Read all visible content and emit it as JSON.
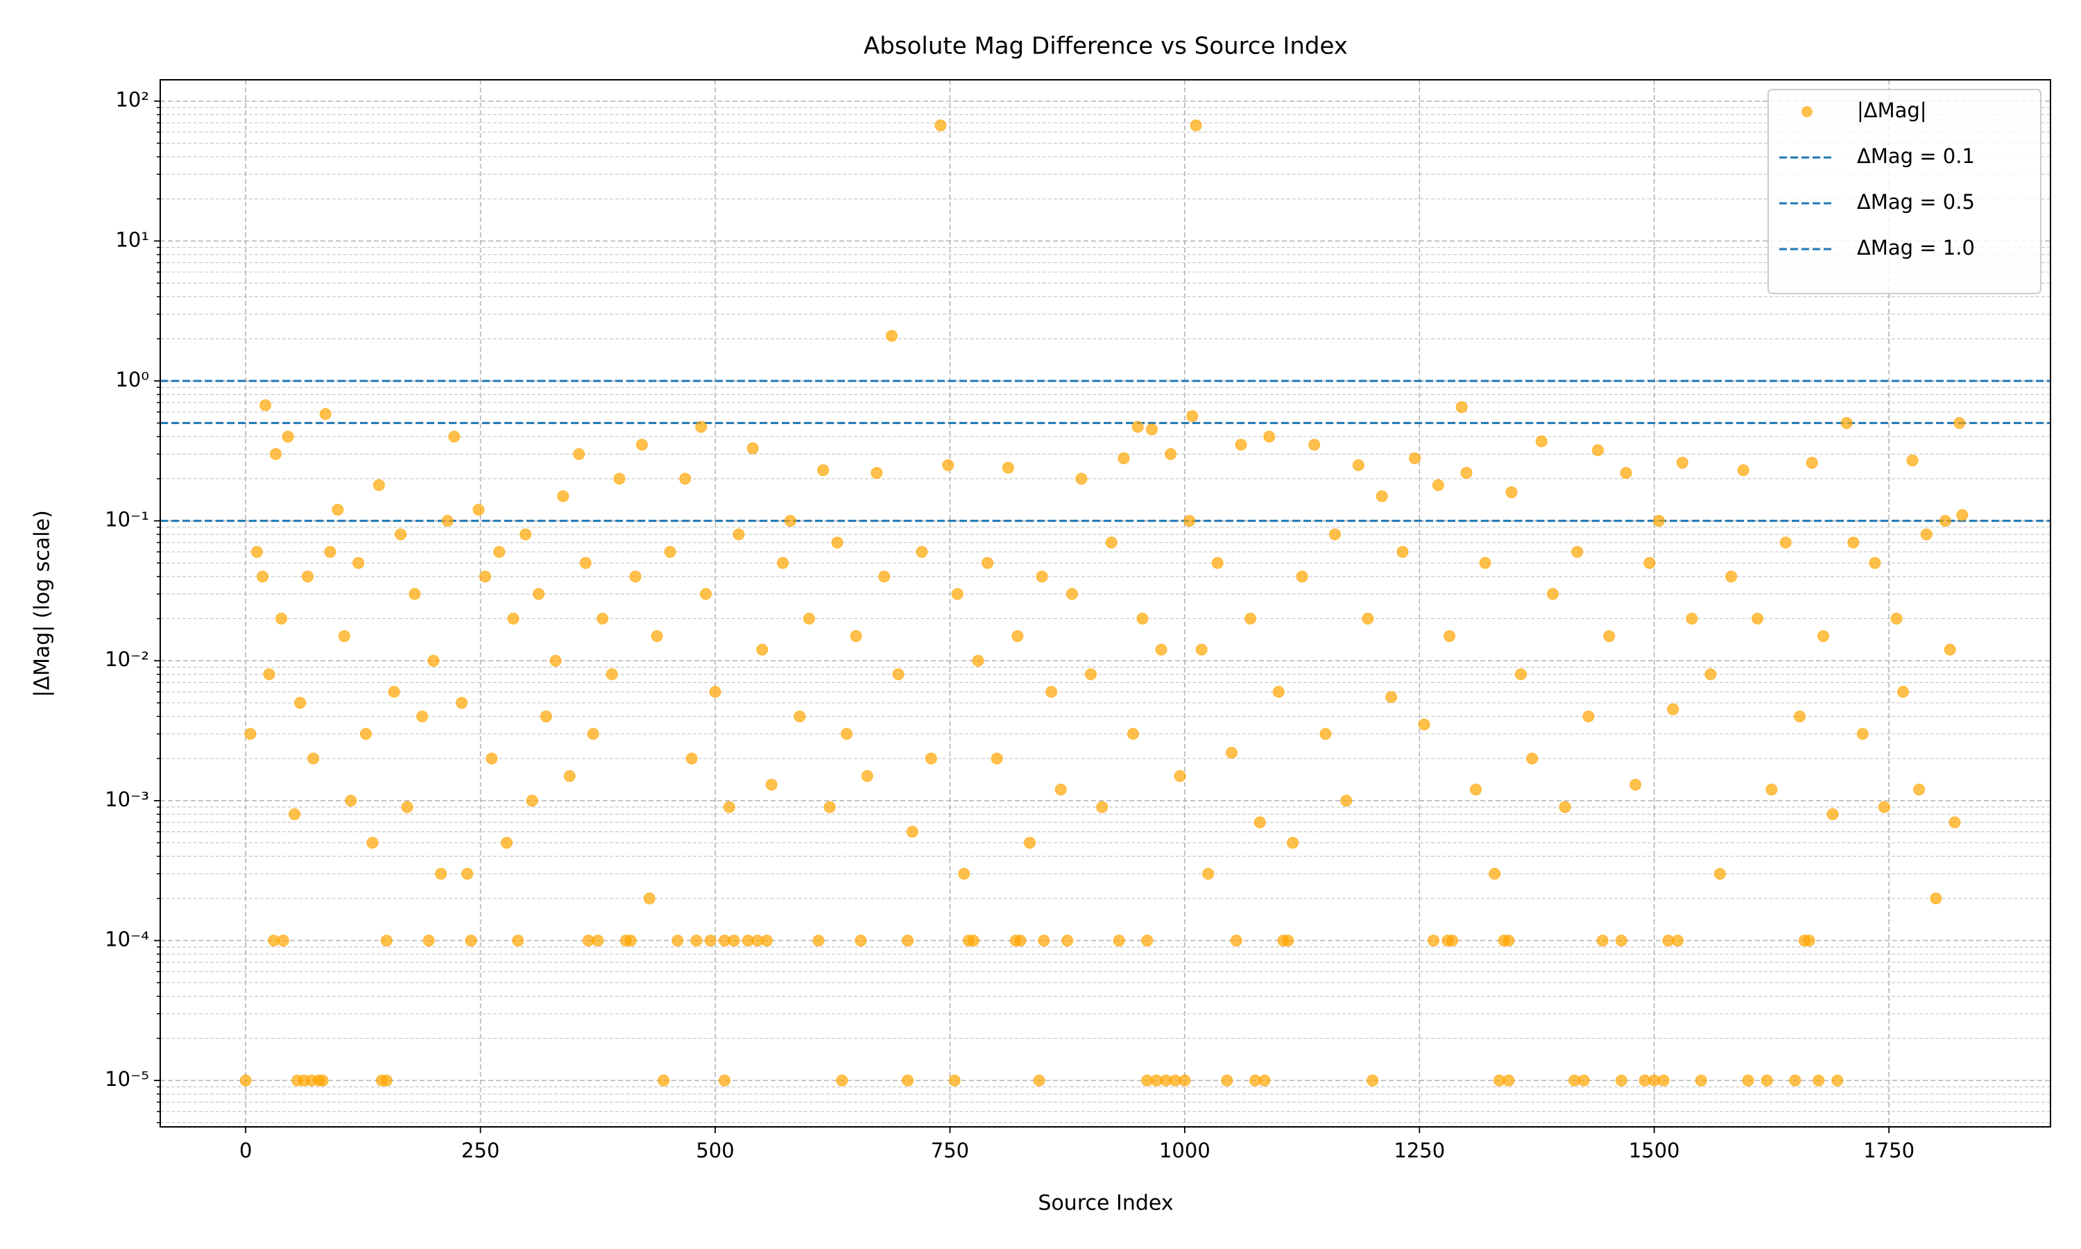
{
  "chart_data": {
    "type": "scatter",
    "title": "Absolute Mag Difference vs Source Index",
    "xlabel": "Source Index",
    "ylabel": "|ΔMag| (log scale)",
    "x": [
      740,
      1012,
      688,
      21,
      85,
      1295,
      1008,
      1825,
      1705,
      950,
      485,
      0,
      55,
      62,
      70,
      78,
      82,
      145,
      150,
      445,
      510,
      635,
      705,
      755,
      845,
      960,
      970,
      980,
      990,
      1000,
      1045,
      1075,
      1085,
      1200,
      1335,
      1345,
      1415,
      1425,
      1465,
      1490,
      1500,
      1510,
      1550,
      1600,
      1620,
      1650,
      1675,
      1695,
      30,
      40,
      150,
      195,
      240,
      290,
      365,
      375,
      405,
      410,
      460,
      480,
      495,
      510,
      520,
      535,
      545,
      555,
      610,
      655,
      705,
      770,
      775,
      820,
      825,
      850,
      875,
      930,
      960,
      1055,
      1105,
      1110,
      1265,
      1280,
      1285,
      1340,
      1345,
      1445,
      1465,
      1515,
      1525,
      1660,
      1665,
      5,
      12,
      18,
      25,
      32,
      38,
      45,
      52,
      58,
      66,
      72,
      90,
      98,
      105,
      112,
      120,
      128,
      135,
      142,
      158,
      165,
      172,
      180,
      188,
      200,
      208,
      215,
      222,
      230,
      236,
      248,
      255,
      262,
      270,
      278,
      285,
      298,
      305,
      312,
      320,
      330,
      338,
      345,
      355,
      362,
      370,
      380,
      390,
      398,
      415,
      422,
      430,
      438,
      452,
      468,
      475,
      490,
      500,
      515,
      525,
      540,
      550,
      560,
      572,
      580,
      590,
      600,
      615,
      622,
      630,
      640,
      650,
      662,
      672,
      680,
      695,
      710,
      720,
      730,
      748,
      758,
      765,
      780,
      790,
      800,
      812,
      822,
      835,
      848,
      858,
      868,
      880,
      890,
      900,
      912,
      922,
      935,
      945,
      955,
      965,
      975,
      985,
      995,
      1005,
      1018,
      1025,
      1035,
      1050,
      1060,
      1070,
      1080,
      1090,
      1100,
      1115,
      1125,
      1138,
      1150,
      1160,
      1172,
      1185,
      1195,
      1210,
      1220,
      1232,
      1245,
      1255,
      1270,
      1282,
      1300,
      1310,
      1320,
      1330,
      1348,
      1358,
      1370,
      1380,
      1392,
      1405,
      1418,
      1430,
      1440,
      1452,
      1470,
      1480,
      1495,
      1505,
      1520,
      1530,
      1540,
      1560,
      1570,
      1582,
      1595,
      1610,
      1625,
      1640,
      1655,
      1668,
      1680,
      1690,
      1712,
      1722,
      1735,
      1745,
      1758,
      1765,
      1775,
      1782,
      1790,
      1800,
      1810,
      1815,
      1820,
      1828
    ],
    "series": [
      {
        "name": "|ΔMag|",
        "color": "#ffa500",
        "values": [
          67,
          67,
          2.1,
          0.67,
          0.58,
          0.65,
          0.56,
          0.5,
          0.5,
          0.47,
          0.47,
          1e-05,
          1e-05,
          1e-05,
          1e-05,
          1e-05,
          1e-05,
          1e-05,
          1e-05,
          1e-05,
          1e-05,
          1e-05,
          1e-05,
          1e-05,
          1e-05,
          1e-05,
          1e-05,
          1e-05,
          1e-05,
          1e-05,
          1e-05,
          1e-05,
          1e-05,
          1e-05,
          1e-05,
          1e-05,
          1e-05,
          1e-05,
          1e-05,
          1e-05,
          1e-05,
          1e-05,
          1e-05,
          1e-05,
          1e-05,
          1e-05,
          1e-05,
          1e-05,
          0.0001,
          0.0001,
          0.0001,
          0.0001,
          0.0001,
          0.0001,
          0.0001,
          0.0001,
          0.0001,
          0.0001,
          0.0001,
          0.0001,
          0.0001,
          0.0001,
          0.0001,
          0.0001,
          0.0001,
          0.0001,
          0.0001,
          0.0001,
          0.0001,
          0.0001,
          0.0001,
          0.0001,
          0.0001,
          0.0001,
          0.0001,
          0.0001,
          0.0001,
          0.0001,
          0.0001,
          0.0001,
          0.0001,
          0.0001,
          0.0001,
          0.0001,
          0.0001,
          0.0001,
          0.0001,
          0.0001,
          0.0001,
          0.0001,
          0.0001,
          0.003,
          0.06,
          0.04,
          0.008,
          0.3,
          0.02,
          0.4,
          0.0008,
          0.005,
          0.04,
          0.002,
          0.06,
          0.12,
          0.015,
          0.001,
          0.05,
          0.003,
          0.0005,
          0.18,
          0.006,
          0.08,
          0.0009,
          0.03,
          0.004,
          0.01,
          0.0003,
          0.1,
          0.4,
          0.005,
          0.0003,
          0.12,
          0.04,
          0.002,
          0.06,
          0.0005,
          0.02,
          0.08,
          0.001,
          0.03,
          0.004,
          0.01,
          0.15,
          0.0015,
          0.3,
          0.05,
          0.003,
          0.02,
          0.008,
          0.2,
          0.04,
          0.35,
          0.0002,
          0.015,
          0.06,
          0.2,
          0.002,
          0.03,
          0.006,
          0.0009,
          0.08,
          0.33,
          0.012,
          0.0013,
          0.05,
          0.1,
          0.004,
          0.02,
          0.23,
          0.0009,
          0.07,
          0.003,
          0.015,
          0.0015,
          0.22,
          0.04,
          0.008,
          0.0006,
          0.06,
          0.002,
          0.25,
          0.03,
          0.0003,
          0.01,
          0.05,
          0.002,
          0.24,
          0.015,
          0.0005,
          0.04,
          0.006,
          0.0012,
          0.03,
          0.2,
          0.008,
          0.0009,
          0.07,
          0.28,
          0.003,
          0.02,
          0.45,
          0.012,
          0.3,
          0.0015,
          0.1,
          0.012,
          0.0003,
          0.05,
          0.0022,
          0.35,
          0.02,
          0.0007,
          0.4,
          0.006,
          0.0005,
          0.04,
          0.35,
          0.003,
          0.08,
          0.001,
          0.25,
          0.02,
          0.15,
          0.0055,
          0.06,
          0.28,
          0.0035,
          0.18,
          0.015,
          0.22,
          0.0012,
          0.05,
          0.0003,
          0.16,
          0.008,
          0.002,
          0.37,
          0.03,
          0.0009,
          0.06,
          0.004,
          0.32,
          0.015,
          0.22,
          0.0013,
          0.05,
          0.1,
          0.0045,
          0.26,
          0.02,
          0.008,
          0.0003,
          0.04,
          0.23,
          0.02,
          0.0012,
          0.07,
          0.004,
          0.26,
          0.015,
          0.0008,
          0.07,
          0.003,
          0.05,
          0.0009,
          0.02,
          0.006,
          0.27,
          0.0012,
          0.08,
          0.0002,
          0.1,
          0.012,
          0.0007,
          0.11
        ]
      }
    ],
    "hlines": [
      {
        "name": "ΔMag = 0.1",
        "value": 0.1,
        "color": "#1f77b4"
      },
      {
        "name": "ΔMag = 0.5",
        "value": 0.5,
        "color": "#1f77b4"
      },
      {
        "name": "ΔMag = 1.0",
        "value": 1.0,
        "color": "#1f77b4"
      }
    ],
    "xlim": [
      -91,
      1922
    ],
    "ylim": [
      4.66e-06,
      142
    ],
    "yscale": "log",
    "xticks": [
      0,
      250,
      500,
      750,
      1000,
      1250,
      1500,
      1750
    ],
    "yticks": [
      {
        "value": 1e-05,
        "label": "10⁻⁵"
      },
      {
        "value": 0.0001,
        "label": "10⁻⁴"
      },
      {
        "value": 0.001,
        "label": "10⁻³"
      },
      {
        "value": 0.01,
        "label": "10⁻²"
      },
      {
        "value": 0.1,
        "label": "10⁻¹"
      },
      {
        "value": 1,
        "label": "10⁰"
      },
      {
        "value": 10,
        "label": "10¹"
      },
      {
        "value": 100,
        "label": "10²"
      }
    ],
    "yminorticks": [
      5e-06,
      6e-06,
      7e-06,
      8e-06,
      9e-06,
      2e-05,
      3e-05,
      4e-05,
      5e-05,
      6e-05,
      7e-05,
      8e-05,
      9e-05,
      0.0002,
      0.0003,
      0.0004,
      0.0005,
      0.0006,
      0.0007,
      0.0008,
      0.0009,
      0.002,
      0.003,
      0.004,
      0.005,
      0.006,
      0.007,
      0.008,
      0.009,
      0.02,
      0.03,
      0.04,
      0.05,
      0.06,
      0.07,
      0.08,
      0.09,
      0.2,
      0.3,
      0.4,
      0.5,
      0.6,
      0.7,
      0.8,
      0.9,
      2,
      3,
      4,
      5,
      6,
      7,
      8,
      9,
      20,
      30,
      40,
      50,
      60,
      70,
      80,
      90
    ],
    "grid": true,
    "legend": "upper right"
  }
}
